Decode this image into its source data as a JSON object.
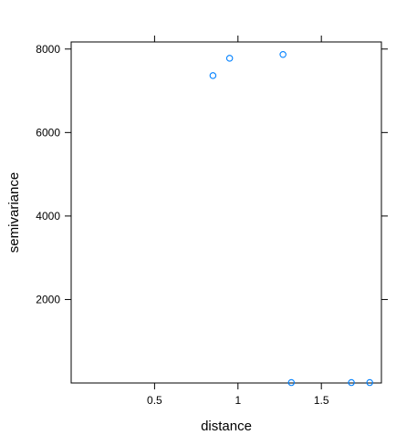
{
  "chart_data": {
    "type": "scatter",
    "x_label": "distance",
    "y_label": "semivariance",
    "series": [
      {
        "color": "#0080ff",
        "x": [
          0.85,
          0.95,
          1.27,
          1.32,
          1.68,
          1.79
        ],
        "values": [
          7365,
          7780,
          7870,
          10,
          10,
          10
        ]
      }
    ],
    "xlim": [
      0,
      1.86
    ],
    "ylim": [
      0,
      8170
    ],
    "xticks": [
      0.5,
      1.0,
      1.5
    ],
    "yticks": [
      2000,
      4000,
      6000,
      8000
    ]
  }
}
